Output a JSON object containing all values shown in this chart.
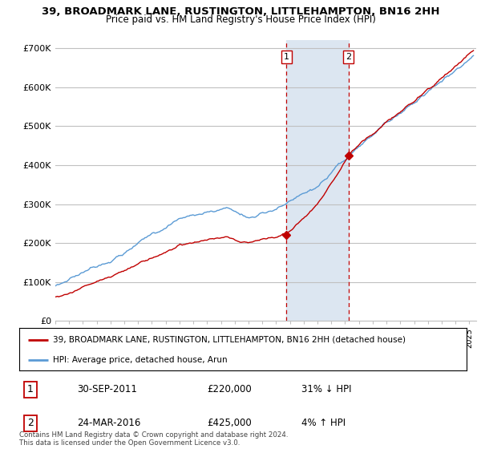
{
  "title": "39, BROADMARK LANE, RUSTINGTON, LITTLEHAMPTON, BN16 2HH",
  "subtitle": "Price paid vs. HM Land Registry's House Price Index (HPI)",
  "ylim": [
    0,
    720000
  ],
  "yticks": [
    0,
    100000,
    200000,
    300000,
    400000,
    500000,
    600000,
    700000
  ],
  "ytick_labels": [
    "£0",
    "£100K",
    "£200K",
    "£300K",
    "£400K",
    "£500K",
    "£600K",
    "£700K"
  ],
  "hpi_color": "#5b9bd5",
  "price_color": "#c00000",
  "sale1_x": 2011.75,
  "sale1_y": 220000,
  "sale1_label": "1",
  "sale2_x": 2016.25,
  "sale2_y": 425000,
  "sale2_label": "2",
  "shaded_xmin": 2011.75,
  "shaded_xmax": 2016.25,
  "shaded_color": "#dce6f1",
  "legend_line1": "39, BROADMARK LANE, RUSTINGTON, LITTLEHAMPTON, BN16 2HH (detached house)",
  "legend_line2": "HPI: Average price, detached house, Arun",
  "table_row1_num": "1",
  "table_row1_date": "30-SEP-2011",
  "table_row1_price": "£220,000",
  "table_row1_hpi": "31% ↓ HPI",
  "table_row2_num": "2",
  "table_row2_date": "24-MAR-2016",
  "table_row2_price": "£425,000",
  "table_row2_hpi": "4% ↑ HPI",
  "footnote": "Contains HM Land Registry data © Crown copyright and database right 2024.\nThis data is licensed under the Open Government Licence v3.0.",
  "background_color": "#ffffff",
  "grid_color": "#c0c0c0",
  "xmin": 1995,
  "xmax": 2025.5
}
